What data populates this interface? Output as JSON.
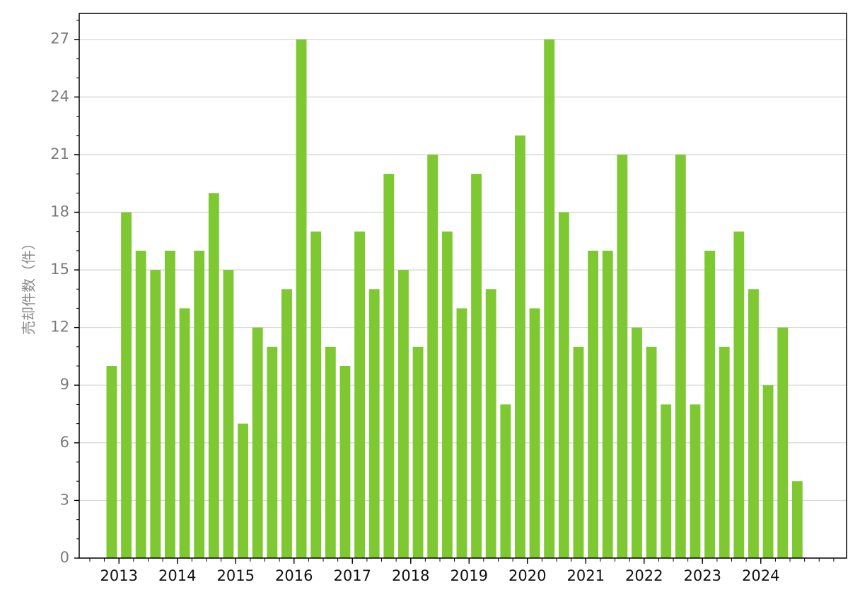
{
  "chart_data": {
    "type": "bar",
    "title": "",
    "xlabel": "",
    "ylabel": "売却件数（件）",
    "ylim": [
      0,
      28.35
    ],
    "y_ticks": [
      0,
      3,
      6,
      9,
      12,
      15,
      18,
      21,
      24,
      27
    ],
    "x_tick_labels": [
      "2013",
      "2014",
      "2015",
      "2016",
      "2017",
      "2018",
      "2019",
      "2020",
      "2021",
      "2022",
      "2023",
      "2024"
    ],
    "grid": "horizontal",
    "bar_color": "#7ec832",
    "x": [
      "2013-Q1",
      "2013-Q2",
      "2013-Q3",
      "2013-Q4",
      "2014-Q1",
      "2014-Q2",
      "2014-Q3",
      "2014-Q4",
      "2015-Q1",
      "2015-Q2",
      "2015-Q3",
      "2015-Q4",
      "2016-Q1",
      "2016-Q2",
      "2016-Q3",
      "2016-Q4",
      "2017-Q1",
      "2017-Q2",
      "2017-Q3",
      "2017-Q4",
      "2018-Q1",
      "2018-Q2",
      "2018-Q3",
      "2018-Q4",
      "2019-Q1",
      "2019-Q2",
      "2019-Q3",
      "2019-Q4",
      "2020-Q1",
      "2020-Q2",
      "2020-Q3",
      "2020-Q4",
      "2021-Q1",
      "2021-Q2",
      "2021-Q3",
      "2021-Q4",
      "2022-Q1",
      "2022-Q2",
      "2022-Q3",
      "2022-Q4",
      "2023-Q1",
      "2023-Q2",
      "2023-Q3",
      "2023-Q4",
      "2024-Q1",
      "2024-Q2",
      "2024-Q3",
      "2024-Q4"
    ],
    "values": [
      10,
      18,
      16,
      15,
      16,
      13,
      16,
      19,
      15,
      7,
      12,
      11,
      14,
      27,
      17,
      11,
      10,
      17,
      14,
      20,
      15,
      11,
      21,
      17,
      13,
      20,
      14,
      8,
      22,
      13,
      27,
      18,
      11,
      16,
      16,
      21,
      12,
      11,
      8,
      21,
      8,
      16,
      11,
      17,
      14,
      9,
      12,
      4
    ]
  }
}
